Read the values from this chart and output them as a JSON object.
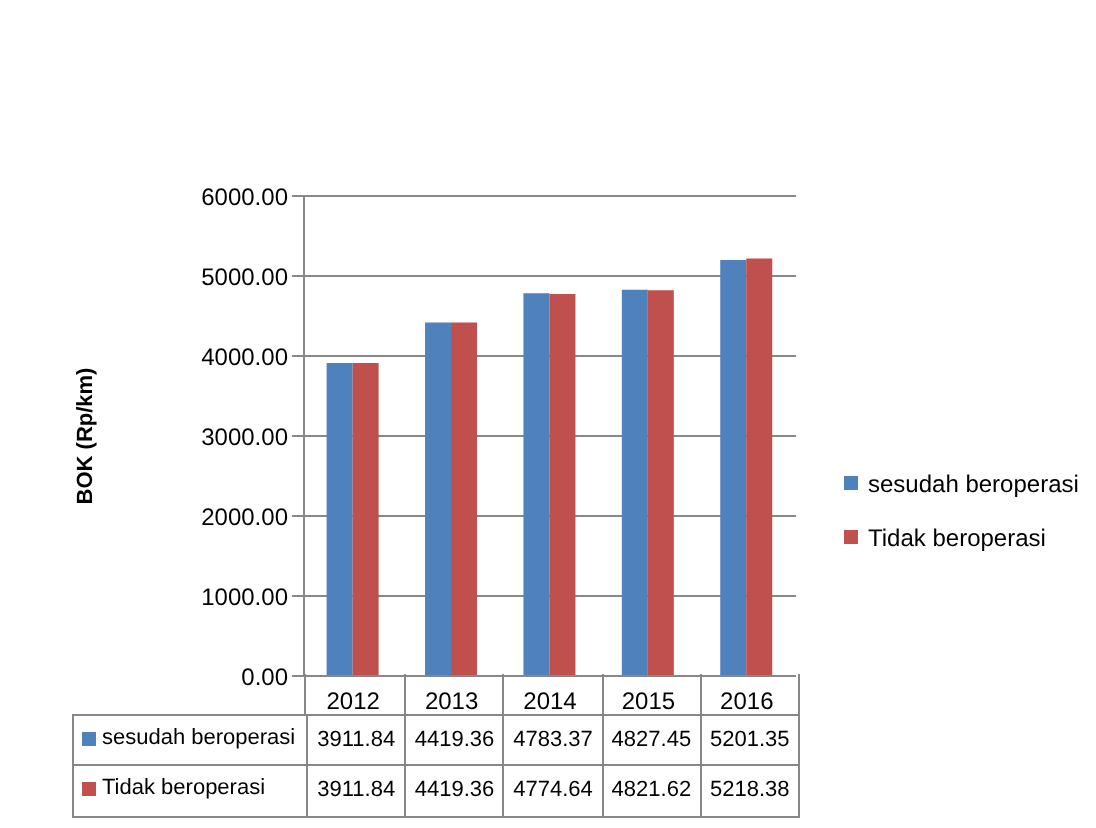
{
  "chart_data": {
    "type": "bar",
    "ylabel": "BOK (Rp/km)",
    "categories": [
      "2012",
      "2013",
      "2014",
      "2015",
      "2016"
    ],
    "series": [
      {
        "name": "sesudah beroperasi",
        "color": "#4f81bd",
        "values": [
          3911.84,
          4419.36,
          4783.37,
          4827.45,
          5201.35
        ]
      },
      {
        "name": "Tidak beroperasi",
        "color": "#c0504d",
        "values": [
          3911.84,
          4419.36,
          4774.64,
          4821.62,
          5218.38
        ]
      }
    ],
    "ylim": [
      0,
      6000
    ],
    "yticks": [
      {
        "value": 0,
        "label": "0.00"
      },
      {
        "value": 1000,
        "label": "1000.00"
      },
      {
        "value": 2000,
        "label": "2000.00"
      },
      {
        "value": 3000,
        "label": "3000.00"
      },
      {
        "value": 4000,
        "label": "4000.00"
      },
      {
        "value": 5000,
        "label": "5000.00"
      },
      {
        "value": 6000,
        "label": "6000.00"
      }
    ],
    "grid": "y",
    "legend": "right",
    "data_labels": true
  }
}
